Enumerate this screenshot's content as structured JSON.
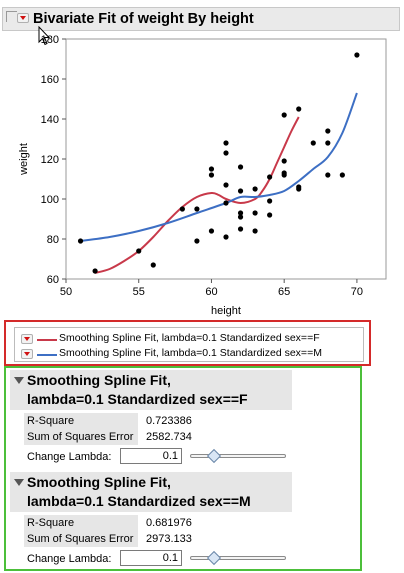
{
  "report": {
    "title": "Bivariate Fit of weight By height"
  },
  "chart_data": {
    "type": "scatter",
    "xlabel": "height",
    "ylabel": "weight",
    "xlim": [
      50,
      72
    ],
    "ylim": [
      60,
      180
    ],
    "x_ticks": [
      50,
      55,
      60,
      65,
      70
    ],
    "y_ticks": [
      60,
      80,
      100,
      120,
      140,
      160,
      180
    ],
    "grid": false,
    "points": [
      {
        "x": 51,
        "y": 79
      },
      {
        "x": 52,
        "y": 64
      },
      {
        "x": 55,
        "y": 74
      },
      {
        "x": 56,
        "y": 67
      },
      {
        "x": 58,
        "y": 95
      },
      {
        "x": 59,
        "y": 95
      },
      {
        "x": 59,
        "y": 79
      },
      {
        "x": 60,
        "y": 115
      },
      {
        "x": 60,
        "y": 112
      },
      {
        "x": 60,
        "y": 84
      },
      {
        "x": 61,
        "y": 128
      },
      {
        "x": 61,
        "y": 123
      },
      {
        "x": 61,
        "y": 107
      },
      {
        "x": 61,
        "y": 98
      },
      {
        "x": 61,
        "y": 81
      },
      {
        "x": 62,
        "y": 116
      },
      {
        "x": 62,
        "y": 104
      },
      {
        "x": 62,
        "y": 93
      },
      {
        "x": 62,
        "y": 91
      },
      {
        "x": 62,
        "y": 85
      },
      {
        "x": 63,
        "y": 105
      },
      {
        "x": 63,
        "y": 93
      },
      {
        "x": 63,
        "y": 84
      },
      {
        "x": 64,
        "y": 111
      },
      {
        "x": 64,
        "y": 99
      },
      {
        "x": 64,
        "y": 92
      },
      {
        "x": 65,
        "y": 142
      },
      {
        "x": 65,
        "y": 119
      },
      {
        "x": 65,
        "y": 113
      },
      {
        "x": 65,
        "y": 112
      },
      {
        "x": 66,
        "y": 145
      },
      {
        "x": 66,
        "y": 106
      },
      {
        "x": 66,
        "y": 105
      },
      {
        "x": 67,
        "y": 128
      },
      {
        "x": 68,
        "y": 134
      },
      {
        "x": 68,
        "y": 128
      },
      {
        "x": 68,
        "y": 112
      },
      {
        "x": 69,
        "y": 112
      },
      {
        "x": 70,
        "y": 172
      }
    ],
    "series": [
      {
        "name": "Smoothing Spline Fit, lambda=0.1 Standardized sex==F",
        "color": "#c8394a",
        "curve": [
          {
            "x": 52,
            "y": 63
          },
          {
            "x": 53,
            "y": 65
          },
          {
            "x": 54,
            "y": 69
          },
          {
            "x": 55,
            "y": 74
          },
          {
            "x": 56,
            "y": 81
          },
          {
            "x": 57,
            "y": 89
          },
          {
            "x": 58,
            "y": 96
          },
          {
            "x": 59,
            "y": 101
          },
          {
            "x": 60,
            "y": 103
          },
          {
            "x": 60.5,
            "y": 102
          },
          {
            "x": 61,
            "y": 100
          },
          {
            "x": 62,
            "y": 98
          },
          {
            "x": 63,
            "y": 100
          },
          {
            "x": 63.5,
            "y": 104
          },
          {
            "x": 64,
            "y": 110
          },
          {
            "x": 64.5,
            "y": 118
          },
          {
            "x": 65,
            "y": 126
          },
          {
            "x": 65.5,
            "y": 134
          },
          {
            "x": 66,
            "y": 141
          }
        ]
      },
      {
        "name": "Smoothing Spline Fit, lambda=0.1 Standardized sex==M",
        "color": "#3d6fc4",
        "curve": [
          {
            "x": 51,
            "y": 79
          },
          {
            "x": 53,
            "y": 81
          },
          {
            "x": 55,
            "y": 84
          },
          {
            "x": 57,
            "y": 88
          },
          {
            "x": 59,
            "y": 93
          },
          {
            "x": 61,
            "y": 98
          },
          {
            "x": 62,
            "y": 101
          },
          {
            "x": 63,
            "y": 101
          },
          {
            "x": 64,
            "y": 102
          },
          {
            "x": 65,
            "y": 104
          },
          {
            "x": 66,
            "y": 109
          },
          {
            "x": 67,
            "y": 115
          },
          {
            "x": 68,
            "y": 121
          },
          {
            "x": 69,
            "y": 133
          },
          {
            "x": 70,
            "y": 153
          }
        ]
      }
    ]
  },
  "legend": {
    "items": [
      {
        "label": "Smoothing Spline Fit, lambda=0.1 Standardized sex==F",
        "color": "#c8394a"
      },
      {
        "label": "Smoothing Spline Fit, lambda=0.1 Standardized sex==M",
        "color": "#3d6fc4"
      }
    ]
  },
  "fits": [
    {
      "title_line1": "Smoothing Spline Fit,",
      "title_line2": "lambda=0.1 Standardized sex==F",
      "r_square_label": "R-Square",
      "r_square": "0.723386",
      "sse_label": "Sum of Squares Error",
      "sse": "2582.734",
      "lambda_label": "Change Lambda:",
      "lambda": "0.1",
      "slider_position": 0.25
    },
    {
      "title_line1": "Smoothing Spline Fit,",
      "title_line2": "lambda=0.1 Standardized sex==M",
      "r_square_label": "R-Square",
      "r_square": "0.681976",
      "sse_label": "Sum of Squares Error",
      "sse": "2973.133",
      "lambda_label": "Change Lambda:",
      "lambda": "0.1",
      "slider_position": 0.25
    }
  ],
  "colors": {
    "highlight_red": "#d42a2a",
    "highlight_green": "#4cbf3a",
    "point": "#000000"
  }
}
